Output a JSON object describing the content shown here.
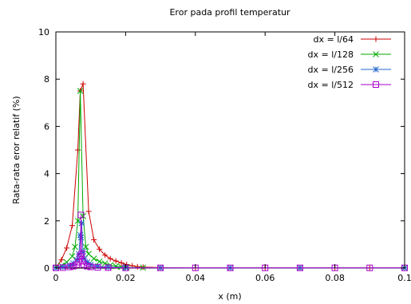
{
  "chart_data": {
    "type": "line",
    "title": "Eror pada profil temperatur",
    "xlabel": "x (m)",
    "ylabel": "Rata-rata eror relatif (%)",
    "xlim": [
      0,
      0.1
    ],
    "ylim": [
      0,
      10
    ],
    "xticks": [
      "0",
      "0.02",
      "0.04",
      "0.06",
      "0.08",
      "0.1"
    ],
    "xtick_values": [
      0,
      0.02,
      0.04,
      0.06,
      0.08,
      0.1
    ],
    "yticks": [
      "0",
      "2",
      "4",
      "6",
      "8",
      "10"
    ],
    "ytick_values": [
      0,
      2,
      4,
      6,
      8,
      10
    ],
    "grid": false,
    "legend_position": "top-right",
    "series": [
      {
        "name": "dx = l/64",
        "color": "#cc0000",
        "marker": "plus",
        "x": [
          0.0,
          0.0016,
          0.0031,
          0.0047,
          0.0063,
          0.007,
          0.0078,
          0.0094,
          0.0109,
          0.0125,
          0.0141,
          0.0156,
          0.0172,
          0.0188,
          0.0203,
          0.0219,
          0.0234,
          0.025,
          0.03,
          0.04,
          0.05,
          0.06,
          0.07,
          0.08,
          0.09,
          0.1
        ],
        "y": [
          0.02,
          0.35,
          0.85,
          1.8,
          5.0,
          7.5,
          7.8,
          2.4,
          1.2,
          0.8,
          0.55,
          0.4,
          0.3,
          0.22,
          0.15,
          0.1,
          0.06,
          0.04,
          0.02,
          0.01,
          0.01,
          0.01,
          0.01,
          0.01,
          0.01,
          0.01
        ]
      },
      {
        "name": "dx = l/128",
        "color": "#00aa00",
        "marker": "cross",
        "x": [
          0.0,
          0.0016,
          0.0031,
          0.0047,
          0.0055,
          0.0063,
          0.007,
          0.0078,
          0.0086,
          0.0094,
          0.0109,
          0.0125,
          0.0141,
          0.0156,
          0.0172,
          0.0188,
          0.0203,
          0.025,
          0.03,
          0.05,
          0.07,
          0.1
        ],
        "y": [
          0.01,
          0.1,
          0.25,
          0.5,
          0.9,
          2.0,
          7.5,
          2.2,
          0.9,
          0.6,
          0.4,
          0.28,
          0.2,
          0.12,
          0.08,
          0.05,
          0.03,
          0.02,
          0.01,
          0.01,
          0.01,
          0.01
        ]
      },
      {
        "name": "dx = l/256",
        "color": "#2266cc",
        "marker": "star",
        "x": [
          0.0,
          0.002,
          0.004,
          0.005,
          0.006,
          0.0066,
          0.007,
          0.0074,
          0.0078,
          0.0082,
          0.009,
          0.01,
          0.012,
          0.015,
          0.02,
          0.03,
          0.05,
          0.07,
          0.1
        ],
        "y": [
          0.01,
          0.05,
          0.12,
          0.2,
          0.35,
          0.6,
          1.4,
          1.9,
          0.7,
          0.4,
          0.25,
          0.15,
          0.08,
          0.04,
          0.02,
          0.01,
          0.01,
          0.01,
          0.01
        ],
        "extra_x": [
          0.0072
        ],
        "extra_y": [
          1.3
        ]
      },
      {
        "name": "dx = l/512",
        "color": "#aa00cc",
        "marker": "square",
        "x": [
          0.0,
          0.002,
          0.004,
          0.005,
          0.006,
          0.0065,
          0.007,
          0.0072,
          0.0074,
          0.0076,
          0.008,
          0.009,
          0.01,
          0.012,
          0.015,
          0.02,
          0.03,
          0.04,
          0.05,
          0.06,
          0.07,
          0.08,
          0.09,
          0.1
        ],
        "y": [
          0.01,
          0.02,
          0.05,
          0.08,
          0.15,
          0.25,
          0.5,
          2.25,
          0.6,
          0.3,
          0.15,
          0.08,
          0.05,
          0.03,
          0.02,
          0.01,
          0.01,
          0.01,
          0.01,
          0.01,
          0.01,
          0.01,
          0.01,
          0.01
        ]
      }
    ]
  }
}
